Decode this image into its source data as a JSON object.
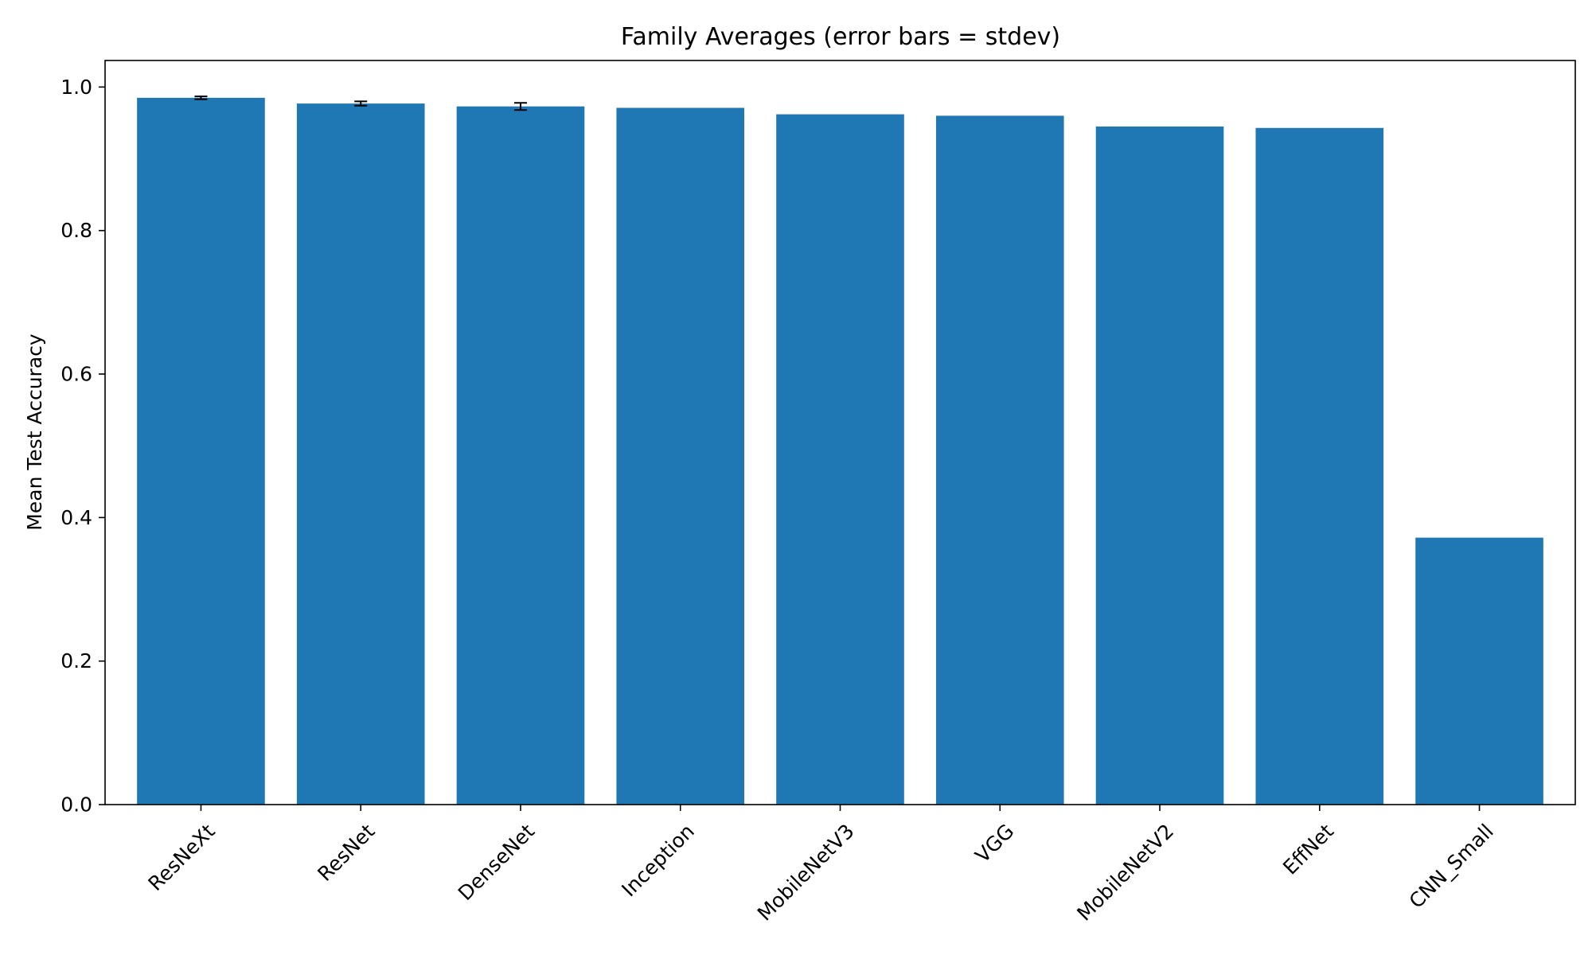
{
  "chart_data": {
    "type": "bar",
    "title": "Family Averages (error bars = stdev)",
    "xlabel": "",
    "ylabel": "Mean Test Accuracy",
    "categories": [
      "ResNeXt",
      "ResNet",
      "DenseNet",
      "Inception",
      "MobileNetV3",
      "VGG",
      "MobileNetV2",
      "EffNet",
      "CNN_Small"
    ],
    "values": [
      0.985,
      0.977,
      0.973,
      0.971,
      0.962,
      0.96,
      0.945,
      0.943,
      0.372
    ],
    "error": [
      0.002,
      0.003,
      0.005,
      0,
      0,
      0,
      0,
      0,
      0
    ],
    "ylim": [
      0,
      1.037
    ],
    "yticks": [
      0.0,
      0.2,
      0.4,
      0.6,
      0.8,
      1.0
    ],
    "ytick_labels": [
      "0.0",
      "0.2",
      "0.4",
      "0.6",
      "0.8",
      "1.0"
    ],
    "grid": false,
    "colors": {
      "bar": "#1f77b4",
      "error": "#000000",
      "axis": "#000000"
    }
  }
}
